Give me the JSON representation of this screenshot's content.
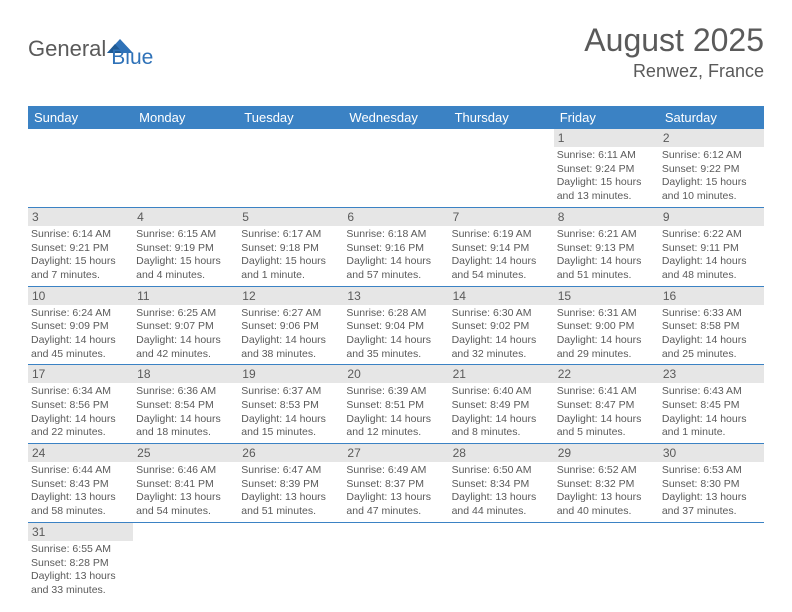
{
  "logo": {
    "text1": "General",
    "text2": "Blue"
  },
  "header": {
    "month": "August 2025",
    "location": "Renwez, France"
  },
  "dayNames": [
    "Sunday",
    "Monday",
    "Tuesday",
    "Wednesday",
    "Thursday",
    "Friday",
    "Saturday"
  ],
  "colors": {
    "headerBlue": "#3b82c4",
    "grayBar": "#e6e6e6",
    "text": "#5a5a5a",
    "logoBlue": "#2f72b8"
  },
  "weeks": [
    [
      {
        "empty": true
      },
      {
        "empty": true
      },
      {
        "empty": true
      },
      {
        "empty": true
      },
      {
        "empty": true
      },
      {
        "num": "1",
        "sunrise": "6:11 AM",
        "sunset": "9:24 PM",
        "daylight": "15 hours and 13 minutes."
      },
      {
        "num": "2",
        "sunrise": "6:12 AM",
        "sunset": "9:22 PM",
        "daylight": "15 hours and 10 minutes."
      }
    ],
    [
      {
        "num": "3",
        "sunrise": "6:14 AM",
        "sunset": "9:21 PM",
        "daylight": "15 hours and 7 minutes."
      },
      {
        "num": "4",
        "sunrise": "6:15 AM",
        "sunset": "9:19 PM",
        "daylight": "15 hours and 4 minutes."
      },
      {
        "num": "5",
        "sunrise": "6:17 AM",
        "sunset": "9:18 PM",
        "daylight": "15 hours and 1 minute."
      },
      {
        "num": "6",
        "sunrise": "6:18 AM",
        "sunset": "9:16 PM",
        "daylight": "14 hours and 57 minutes."
      },
      {
        "num": "7",
        "sunrise": "6:19 AM",
        "sunset": "9:14 PM",
        "daylight": "14 hours and 54 minutes."
      },
      {
        "num": "8",
        "sunrise": "6:21 AM",
        "sunset": "9:13 PM",
        "daylight": "14 hours and 51 minutes."
      },
      {
        "num": "9",
        "sunrise": "6:22 AM",
        "sunset": "9:11 PM",
        "daylight": "14 hours and 48 minutes."
      }
    ],
    [
      {
        "num": "10",
        "sunrise": "6:24 AM",
        "sunset": "9:09 PM",
        "daylight": "14 hours and 45 minutes."
      },
      {
        "num": "11",
        "sunrise": "6:25 AM",
        "sunset": "9:07 PM",
        "daylight": "14 hours and 42 minutes."
      },
      {
        "num": "12",
        "sunrise": "6:27 AM",
        "sunset": "9:06 PM",
        "daylight": "14 hours and 38 minutes."
      },
      {
        "num": "13",
        "sunrise": "6:28 AM",
        "sunset": "9:04 PM",
        "daylight": "14 hours and 35 minutes."
      },
      {
        "num": "14",
        "sunrise": "6:30 AM",
        "sunset": "9:02 PM",
        "daylight": "14 hours and 32 minutes."
      },
      {
        "num": "15",
        "sunrise": "6:31 AM",
        "sunset": "9:00 PM",
        "daylight": "14 hours and 29 minutes."
      },
      {
        "num": "16",
        "sunrise": "6:33 AM",
        "sunset": "8:58 PM",
        "daylight": "14 hours and 25 minutes."
      }
    ],
    [
      {
        "num": "17",
        "sunrise": "6:34 AM",
        "sunset": "8:56 PM",
        "daylight": "14 hours and 22 minutes."
      },
      {
        "num": "18",
        "sunrise": "6:36 AM",
        "sunset": "8:54 PM",
        "daylight": "14 hours and 18 minutes."
      },
      {
        "num": "19",
        "sunrise": "6:37 AM",
        "sunset": "8:53 PM",
        "daylight": "14 hours and 15 minutes."
      },
      {
        "num": "20",
        "sunrise": "6:39 AM",
        "sunset": "8:51 PM",
        "daylight": "14 hours and 12 minutes."
      },
      {
        "num": "21",
        "sunrise": "6:40 AM",
        "sunset": "8:49 PM",
        "daylight": "14 hours and 8 minutes."
      },
      {
        "num": "22",
        "sunrise": "6:41 AM",
        "sunset": "8:47 PM",
        "daylight": "14 hours and 5 minutes."
      },
      {
        "num": "23",
        "sunrise": "6:43 AM",
        "sunset": "8:45 PM",
        "daylight": "14 hours and 1 minute."
      }
    ],
    [
      {
        "num": "24",
        "sunrise": "6:44 AM",
        "sunset": "8:43 PM",
        "daylight": "13 hours and 58 minutes."
      },
      {
        "num": "25",
        "sunrise": "6:46 AM",
        "sunset": "8:41 PM",
        "daylight": "13 hours and 54 minutes."
      },
      {
        "num": "26",
        "sunrise": "6:47 AM",
        "sunset": "8:39 PM",
        "daylight": "13 hours and 51 minutes."
      },
      {
        "num": "27",
        "sunrise": "6:49 AM",
        "sunset": "8:37 PM",
        "daylight": "13 hours and 47 minutes."
      },
      {
        "num": "28",
        "sunrise": "6:50 AM",
        "sunset": "8:34 PM",
        "daylight": "13 hours and 44 minutes."
      },
      {
        "num": "29",
        "sunrise": "6:52 AM",
        "sunset": "8:32 PM",
        "daylight": "13 hours and 40 minutes."
      },
      {
        "num": "30",
        "sunrise": "6:53 AM",
        "sunset": "8:30 PM",
        "daylight": "13 hours and 37 minutes."
      }
    ],
    [
      {
        "num": "31",
        "sunrise": "6:55 AM",
        "sunset": "8:28 PM",
        "daylight": "13 hours and 33 minutes."
      },
      {
        "empty": true
      },
      {
        "empty": true
      },
      {
        "empty": true
      },
      {
        "empty": true
      },
      {
        "empty": true
      },
      {
        "empty": true
      }
    ]
  ]
}
